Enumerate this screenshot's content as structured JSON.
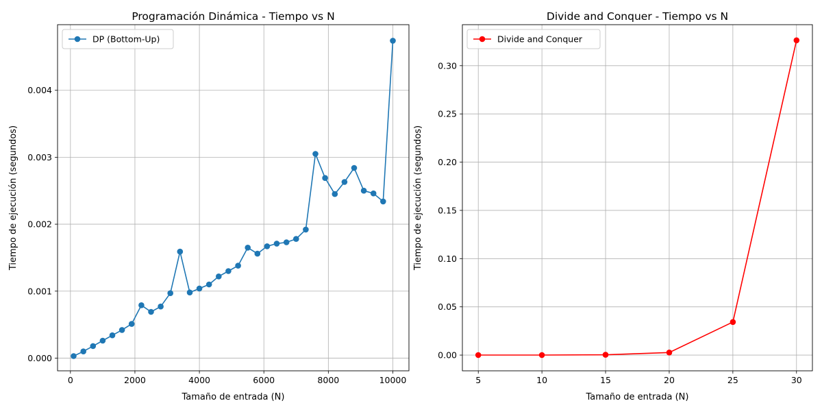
{
  "chart_data": [
    {
      "type": "line",
      "title": "Programación Dinámica - Tiempo vs N",
      "xlabel": "Tamaño de entrada (N)",
      "ylabel": "Tiempo de ejecución (segundos)",
      "xlim": [
        -400,
        10500
      ],
      "ylim": [
        -0.00019,
        0.00498
      ],
      "xticks": [
        0,
        2000,
        4000,
        6000,
        8000,
        10000
      ],
      "xtick_labels": [
        "0",
        "2000",
        "4000",
        "6000",
        "8000",
        "10000"
      ],
      "yticks": [
        0,
        0.001,
        0.002,
        0.003,
        0.004
      ],
      "ytick_labels": [
        "0.000",
        "0.001",
        "0.002",
        "0.003",
        "0.004"
      ],
      "grid": true,
      "legend": "top-left",
      "series": [
        {
          "name": "DP (Bottom-Up)",
          "color": "#1f77b4",
          "marker": "circle",
          "x": [
            100,
            400,
            700,
            1000,
            1300,
            1600,
            1900,
            2200,
            2500,
            2800,
            3100,
            3400,
            3700,
            4000,
            4300,
            4600,
            4900,
            5200,
            5500,
            5800,
            6100,
            6400,
            6700,
            7000,
            7300,
            7600,
            7900,
            8200,
            8500,
            8800,
            9100,
            9400,
            9700,
            10000
          ],
          "y": [
            3e-05,
            0.0001,
            0.00018,
            0.00026,
            0.00034,
            0.00042,
            0.00051,
            0.00079,
            0.00069,
            0.00077,
            0.00097,
            0.00159,
            0.00098,
            0.00104,
            0.0011,
            0.00122,
            0.0013,
            0.00138,
            0.00165,
            0.00156,
            0.00167,
            0.00171,
            0.00173,
            0.00178,
            0.00192,
            0.00305,
            0.00269,
            0.00245,
            0.00263,
            0.00284,
            0.0025,
            0.00246,
            0.00234,
            0.00474
          ]
        }
      ]
    },
    {
      "type": "line",
      "title": "Divide and Conquer - Tiempo vs N",
      "xlabel": "Tamaño de entrada (N)",
      "ylabel": "Tiempo de ejecución (segundos)",
      "xlim": [
        3.75,
        31.25
      ],
      "ylim": [
        -0.0163,
        0.3425
      ],
      "xticks": [
        5,
        10,
        15,
        20,
        25,
        30
      ],
      "xtick_labels": [
        "5",
        "10",
        "15",
        "20",
        "25",
        "30"
      ],
      "yticks": [
        0,
        0.05,
        0.1,
        0.15,
        0.2,
        0.25,
        0.3
      ],
      "ytick_labels": [
        "0.00",
        "0.05",
        "0.10",
        "0.15",
        "0.20",
        "0.25",
        "0.30"
      ],
      "grid": true,
      "legend": "top-left",
      "series": [
        {
          "name": "Divide and Conquer",
          "color": "#ff0000",
          "marker": "circle",
          "x": [
            5,
            10,
            15,
            20,
            25,
            30
          ],
          "y": [
            1e-05,
            3e-05,
            0.0003,
            0.0027,
            0.0343,
            0.3263
          ]
        }
      ]
    }
  ]
}
